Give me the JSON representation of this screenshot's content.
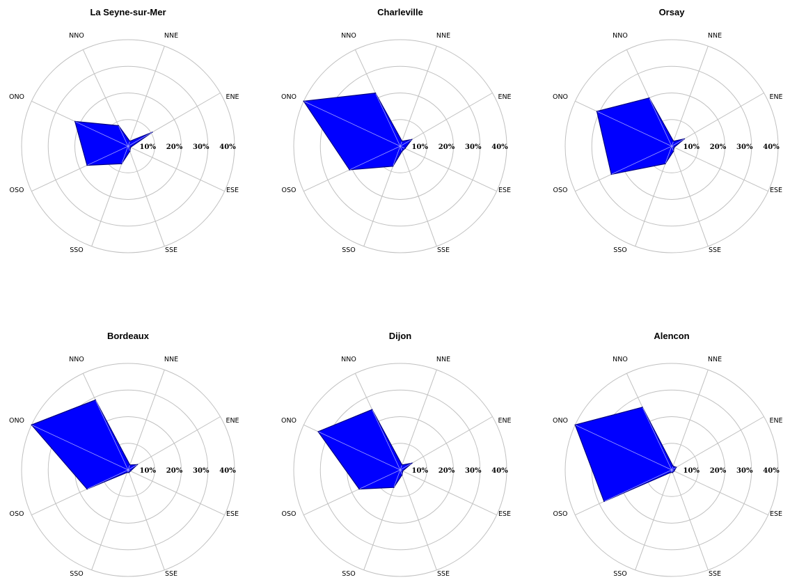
{
  "chart_data": [
    {
      "type": "radar",
      "title": "La Seyne-sur-Mer",
      "directions": [
        "ENE",
        "NNE",
        "NNO",
        "ONO",
        "OSO",
        "SSO",
        "SSE",
        "ESE"
      ],
      "values": [
        10.5,
        2,
        8.5,
        22,
        17,
        7,
        2,
        1
      ],
      "radial_ticks": [
        "10%",
        "20%",
        "30%",
        "40%"
      ],
      "rmax": 40
    },
    {
      "type": "radar",
      "title": "Charleville",
      "directions": [
        "ENE",
        "NNE",
        "NNO",
        "ONO",
        "OSO",
        "SSO",
        "SSE",
        "ESE"
      ],
      "values": [
        5,
        2,
        22,
        40,
        21,
        8,
        2,
        2
      ],
      "radial_ticks": [
        "10%",
        "20%",
        "30%",
        "40%"
      ],
      "rmax": 40
    },
    {
      "type": "radar",
      "title": "Orsay",
      "directions": [
        "ENE",
        "NNE",
        "NNO",
        "ONO",
        "OSO",
        "SSO",
        "SSE",
        "ESE"
      ],
      "values": [
        5.5,
        2,
        20,
        31,
        25,
        7,
        2,
        1
      ],
      "radial_ticks": [
        "10%",
        "20%",
        "30%",
        "40%"
      ],
      "rmax": 40
    },
    {
      "type": "radar",
      "title": "Bordeaux",
      "directions": [
        "ENE",
        "NNE",
        "NNO",
        "ONO",
        "OSO",
        "SSO",
        "SSE",
        "ESE"
      ],
      "values": [
        4,
        2,
        29,
        40,
        17,
        1,
        1,
        1
      ],
      "radial_ticks": [
        "10%",
        "20%",
        "30%",
        "40%"
      ],
      "rmax": 40
    },
    {
      "type": "radar",
      "title": "Dijon",
      "directions": [
        "ENE",
        "NNE",
        "NNO",
        "ONO",
        "OSO",
        "SSO",
        "SSE",
        "ESE"
      ],
      "values": [
        5,
        2,
        25,
        34,
        17,
        7,
        2,
        1
      ],
      "radial_ticks": [
        "10%",
        "20%",
        "30%",
        "40%"
      ],
      "rmax": 40
    },
    {
      "type": "radar",
      "title": "Alencon",
      "directions": [
        "ENE",
        "NNE",
        "NNO",
        "ONO",
        "OSO",
        "SSO",
        "SSE",
        "ESE"
      ],
      "values": [
        2,
        1.5,
        26,
        40,
        28,
        1,
        1,
        1
      ],
      "radial_ticks": [
        "10%",
        "20%",
        "30%",
        "40%"
      ],
      "rmax": 40
    }
  ],
  "colors": {
    "fill": "#0000ff",
    "outline": "#000080",
    "grid": "#c0c0c0",
    "spoke": "#c0c0c0"
  }
}
